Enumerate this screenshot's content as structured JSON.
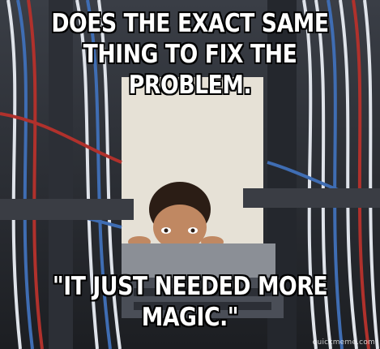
{
  "meme": {
    "top_text": "DOES THE EXACT SAME THING TO FIX THE PROBLEM.",
    "bottom_text": "\"IT JUST NEEDED MORE MAGIC.\"",
    "watermark": "quickmeme.com"
  },
  "colors": {
    "wall": "#e6e1d6",
    "rack": "#2c2f36",
    "cable_red": "#b0312c",
    "cable_blue": "#3f6db3",
    "cable_white": "#dfe3ea",
    "skin": "#c08862",
    "hair": "#2b1d15"
  }
}
